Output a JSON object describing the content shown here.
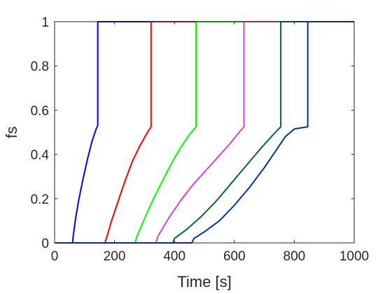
{
  "chart_data": {
    "type": "line",
    "title": "",
    "xlabel": "Time [s]",
    "ylabel": "fs",
    "xlim": [
      0,
      1000
    ],
    "ylim": [
      0,
      1
    ],
    "xticks": [
      0,
      200,
      400,
      600,
      800,
      1000
    ],
    "yticks": [
      0,
      0.2,
      0.4,
      0.6,
      0.8,
      1
    ],
    "xtick_labels": [
      "0",
      "200",
      "400",
      "600",
      "800",
      "1000"
    ],
    "ytick_labels": [
      "0",
      "0.2",
      "0.4",
      "0.6",
      "0.8",
      "1"
    ],
    "grid": false,
    "legend": "none",
    "series": [
      {
        "color": "#0000ff",
        "x": [
          0,
          60,
          62,
          70,
          80,
          95,
          110,
          125,
          140,
          144,
          144,
          1000
        ],
        "y": [
          0,
          0,
          0.03,
          0.11,
          0.19,
          0.29,
          0.38,
          0.46,
          0.52,
          0.53,
          1,
          1
        ]
      },
      {
        "color": "#ff0000",
        "x": [
          0,
          168,
          175,
          190,
          210,
          235,
          260,
          285,
          310,
          322,
          322,
          1000
        ],
        "y": [
          0,
          0,
          0.03,
          0.1,
          0.18,
          0.28,
          0.37,
          0.44,
          0.5,
          0.525,
          1,
          1
        ]
      },
      {
        "color": "#00ff00",
        "x": [
          0,
          268,
          275,
          300,
          330,
          360,
          390,
          420,
          450,
          472,
          472,
          1000
        ],
        "y": [
          0,
          0,
          0.03,
          0.11,
          0.2,
          0.28,
          0.36,
          0.43,
          0.49,
          0.525,
          1,
          1
        ]
      },
      {
        "color": "#cc44cc",
        "x": [
          0,
          338,
          345,
          380,
          420,
          460,
          500,
          540,
          580,
          610,
          632,
          632,
          1000
        ],
        "y": [
          0,
          0,
          0.03,
          0.11,
          0.19,
          0.26,
          0.32,
          0.38,
          0.44,
          0.49,
          0.525,
          1,
          1
        ]
      },
      {
        "color": "#006633",
        "x": [
          0,
          395,
          400,
          440,
          490,
          540,
          590,
          640,
          690,
          730,
          755,
          755,
          1000
        ],
        "y": [
          0,
          0,
          0.02,
          0.06,
          0.12,
          0.19,
          0.27,
          0.35,
          0.43,
          0.49,
          0.525,
          1,
          1
        ]
      },
      {
        "color": "#003399",
        "x": [
          0,
          458,
          465,
          500,
          550,
          600,
          650,
          700,
          740,
          770,
          800,
          845,
          845,
          1000
        ],
        "y": [
          0,
          0,
          0.02,
          0.05,
          0.1,
          0.17,
          0.25,
          0.34,
          0.42,
          0.48,
          0.515,
          0.525,
          1,
          1
        ]
      }
    ]
  }
}
